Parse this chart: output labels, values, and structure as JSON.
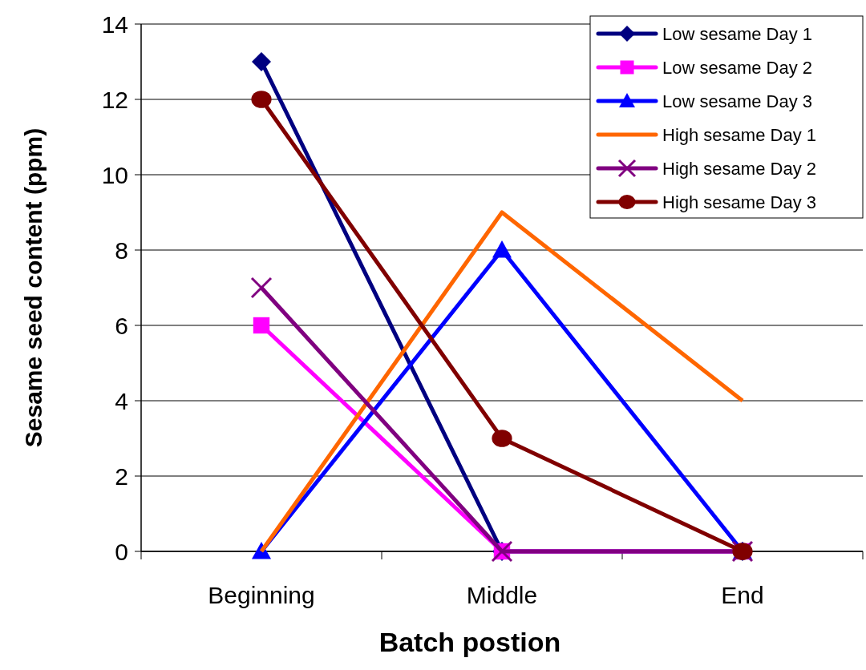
{
  "chart_data": {
    "type": "line",
    "xlabel": "Batch postion",
    "ylabel": "Sesame seed content (ppm)",
    "categories": [
      "Beginning",
      "Middle",
      "End"
    ],
    "series": [
      {
        "name": "Low sesame Day 1",
        "color": "#000080",
        "marker": "diamond",
        "values": [
          13,
          0,
          0
        ]
      },
      {
        "name": "Low sesame Day 2",
        "color": "#ff00ff",
        "marker": "square",
        "values": [
          6,
          0,
          0
        ]
      },
      {
        "name": "Low sesame Day 3",
        "color": "#0000ff",
        "marker": "triangle",
        "values": [
          0,
          8,
          0
        ]
      },
      {
        "name": "High sesame Day 1",
        "color": "#ff6600",
        "marker": "none",
        "values": [
          0,
          9,
          4
        ]
      },
      {
        "name": "High sesame Day 2",
        "color": "#800080",
        "marker": "cross",
        "values": [
          7,
          0,
          0
        ]
      },
      {
        "name": "High sesame Day 3",
        "color": "#800000",
        "marker": "circle",
        "values": [
          12,
          3,
          0
        ]
      }
    ],
    "ylim": [
      0,
      14
    ],
    "yticks": [
      0,
      2,
      4,
      6,
      8,
      10,
      12,
      14
    ],
    "grid": "y",
    "legend": "top right"
  }
}
